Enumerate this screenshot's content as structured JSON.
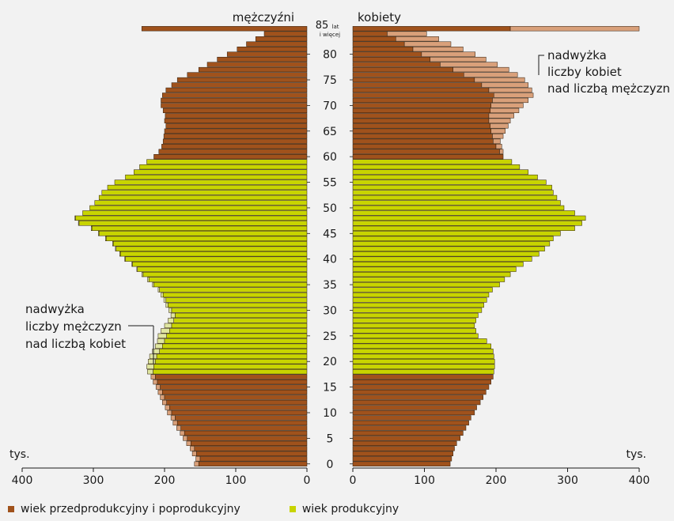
{
  "chart_data": {
    "type": "bar",
    "orientation": "horizontal-population-pyramid",
    "left_title": "mężczyźni",
    "right_title": "kobiety",
    "age_top_label": "85",
    "age_top_sublabel_1": "lat",
    "age_top_sublabel_2": "i więcej",
    "age_ticks": [
      "0",
      "5",
      "10",
      "15",
      "20",
      "25",
      "30",
      "35",
      "40",
      "45",
      "50",
      "55",
      "60",
      "65",
      "70",
      "75",
      "80"
    ],
    "x_ticks_left": [
      "400",
      "300",
      "200",
      "100",
      "0"
    ],
    "x_ticks_right": [
      "0",
      "100",
      "200",
      "300",
      "400"
    ],
    "unit_left": "tys.",
    "unit_right": "tys.",
    "xlim": [
      0,
      400
    ],
    "annotation_women": [
      "nadwyżka",
      "liczby kobiet",
      "nad liczbą mężczyzn"
    ],
    "annotation_men": [
      "nadwyżka",
      "liczby mężczyzn",
      "nad liczbą kobiet"
    ],
    "ages": [
      0,
      1,
      2,
      3,
      4,
      5,
      6,
      7,
      8,
      9,
      10,
      11,
      12,
      13,
      14,
      15,
      16,
      17,
      18,
      19,
      20,
      21,
      22,
      23,
      24,
      25,
      26,
      27,
      28,
      29,
      30,
      31,
      32,
      33,
      34,
      35,
      36,
      37,
      38,
      39,
      40,
      41,
      42,
      43,
      44,
      45,
      46,
      47,
      48,
      49,
      50,
      51,
      52,
      53,
      54,
      55,
      56,
      57,
      58,
      59,
      60,
      61,
      62,
      63,
      64,
      65,
      66,
      67,
      68,
      69,
      70,
      71,
      72,
      73,
      74,
      75,
      76,
      77,
      78,
      79,
      80,
      81,
      82,
      83,
      84,
      85
    ],
    "productive_age_range": [
      18,
      59
    ],
    "men": [
      152,
      150,
      155,
      158,
      163,
      168,
      172,
      177,
      182,
      185,
      190,
      193,
      197,
      200,
      203,
      206,
      210,
      213,
      216,
      215,
      213,
      211,
      207,
      203,
      200,
      197,
      193,
      190,
      187,
      185,
      190,
      195,
      198,
      202,
      207,
      215,
      222,
      230,
      238,
      245,
      255,
      262,
      268,
      272,
      282,
      292,
      302,
      320,
      325,
      315,
      305,
      298,
      292,
      288,
      280,
      270,
      255,
      243,
      235,
      225,
      215,
      208,
      204,
      202,
      201,
      200,
      198,
      200,
      199,
      202,
      205,
      205,
      203,
      198,
      190,
      182,
      168,
      152,
      140,
      126,
      112,
      98,
      85,
      72,
      60,
      232
    ],
    "women": [
      136,
      138,
      140,
      142,
      145,
      150,
      154,
      158,
      162,
      165,
      170,
      173,
      178,
      182,
      186,
      190,
      193,
      196,
      197,
      198,
      198,
      197,
      196,
      193,
      187,
      175,
      172,
      170,
      172,
      175,
      180,
      183,
      187,
      190,
      195,
      205,
      212,
      220,
      228,
      238,
      250,
      260,
      268,
      275,
      280,
      290,
      310,
      320,
      325,
      310,
      295,
      290,
      285,
      280,
      278,
      270,
      258,
      245,
      233,
      222,
      210,
      205,
      200,
      196,
      195,
      193,
      192,
      190,
      190,
      192,
      193,
      195,
      197,
      190,
      180,
      170,
      155,
      140,
      122,
      108,
      96,
      84,
      72,
      60,
      48,
      220
    ],
    "women_surplus": [
      0,
      0,
      0,
      0,
      0,
      0,
      0,
      0,
      0,
      0,
      0,
      0,
      0,
      0,
      0,
      0,
      0,
      0,
      0,
      0,
      0,
      0,
      0,
      0,
      0,
      0,
      0,
      0,
      0,
      0,
      0,
      0,
      0,
      0,
      0,
      0,
      0,
      0,
      0,
      0,
      0,
      0,
      0,
      0,
      0,
      0,
      0,
      0,
      0,
      0,
      0,
      0,
      0,
      0,
      0,
      0,
      0,
      0,
      0,
      0,
      0,
      5,
      8,
      10,
      15,
      20,
      25,
      30,
      35,
      40,
      45,
      50,
      55,
      60,
      65,
      70,
      75,
      78,
      80,
      78,
      75,
      70,
      65,
      60,
      55,
      180
    ],
    "men_surplus": [
      6,
      6,
      6,
      6,
      6,
      6,
      6,
      6,
      6,
      6,
      6,
      6,
      6,
      6,
      6,
      6,
      6,
      6,
      8,
      10,
      10,
      10,
      10,
      10,
      10,
      12,
      12,
      10,
      8,
      6,
      4,
      3,
      3,
      3,
      2,
      2,
      2,
      2,
      1,
      1,
      1,
      1,
      1,
      1,
      1,
      1,
      1,
      1,
      1,
      0,
      0,
      0,
      0,
      0,
      0,
      0,
      0,
      0,
      0,
      0,
      0,
      0,
      0,
      0,
      0,
      0,
      0,
      0,
      0,
      0,
      0,
      0,
      0,
      0,
      0,
      0,
      0,
      0,
      0,
      0,
      0,
      0,
      0,
      0,
      0,
      0
    ],
    "legend": [
      {
        "label": "wiek przedprodukcyjny i poprodukcyjny",
        "color": "#a0521c"
      },
      {
        "label": "wiek produkcyjny",
        "color": "#c8d400"
      }
    ],
    "colors": {
      "nonproductive": "#a0521c",
      "productive": "#c8d400",
      "surplus_women": "#d9a07a",
      "surplus_men": "#e0e6a0",
      "bar_outline": "#2a1a0a"
    }
  }
}
